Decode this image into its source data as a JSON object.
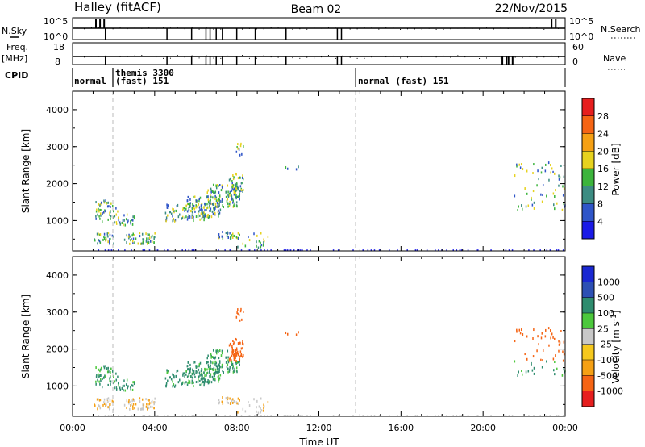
{
  "header": {
    "station": "Halley (fitACF)",
    "beam": "Beam 02",
    "date": "22/Nov/2015"
  },
  "chart_data": [
    {
      "type": "line",
      "name": "nsky-nsearch-strip",
      "left_label": "N.Sky",
      "right_label": "N.Search",
      "left_ticks": [
        "10^5",
        "10^0"
      ],
      "right_ticks": [
        "10^5",
        "10^0"
      ]
    },
    {
      "type": "line",
      "name": "freq-nave-strip",
      "left_label": "Freq.",
      "left_unit": "[MHz]",
      "right_label": "Nave",
      "left_ticks": [
        "18",
        "8"
      ],
      "right_ticks": [
        "60",
        "0"
      ]
    },
    {
      "type": "table",
      "name": "cpid-strip",
      "label": "CPID",
      "segments": [
        {
          "start_h": 0.0,
          "end_h": 1.75,
          "text": "normal"
        },
        {
          "start_h": 1.75,
          "end_h": 14.0,
          "text": "(fast) 151",
          "top_text": "themis 3300"
        },
        {
          "start_h": 14.0,
          "end_h": 24.0,
          "text": "normal (fast) 151"
        }
      ]
    },
    {
      "type": "heatmap",
      "name": "power-panel",
      "ylabel": "Slant Range [km]",
      "xlabel": "",
      "xlim_h": [
        0,
        24
      ],
      "ylim": [
        180,
        4500
      ],
      "yticks": [
        1000,
        2000,
        3000,
        4000
      ],
      "colorbar": {
        "label": "Power [dB]",
        "ticks": [
          "4",
          "8",
          "12",
          "16",
          "20",
          "24",
          "28"
        ],
        "colors": [
          "#1a1ae6",
          "#2f55c8",
          "#3c8c82",
          "#3cb43c",
          "#e6d21e",
          "#f5a014",
          "#f56414",
          "#e61e1e"
        ]
      },
      "scatter_blobs": [
        {
          "t0": 1.0,
          "t1": 2.2,
          "r0": 1000,
          "r1": 1600,
          "dens": 0.5
        },
        {
          "t0": 1.0,
          "t1": 2.0,
          "r0": 400,
          "r1": 700,
          "dens": 0.8
        },
        {
          "t0": 2.0,
          "t1": 3.0,
          "r0": 900,
          "r1": 1200,
          "dens": 0.7
        },
        {
          "t0": 2.5,
          "t1": 4.0,
          "r0": 400,
          "r1": 700,
          "dens": 0.9
        },
        {
          "t0": 4.5,
          "t1": 6.5,
          "r0": 1000,
          "r1": 1500,
          "dens": 0.6
        },
        {
          "t0": 5.5,
          "t1": 7.2,
          "r0": 1100,
          "r1": 1700,
          "dens": 0.8
        },
        {
          "t0": 6.5,
          "t1": 8.2,
          "r0": 1400,
          "r1": 2000,
          "dens": 0.8
        },
        {
          "t0": 7.6,
          "t1": 8.3,
          "r0": 1700,
          "r1": 2300,
          "dens": 0.9
        },
        {
          "t0": 7.0,
          "t1": 8.1,
          "r0": 550,
          "r1": 750,
          "dens": 0.9
        },
        {
          "t0": 8.0,
          "t1": 9.5,
          "r0": 300,
          "r1": 700,
          "dens": 0.3
        },
        {
          "t0": 7.9,
          "t1": 8.3,
          "r0": 2800,
          "r1": 3200,
          "dens": 0.5
        },
        {
          "t0": 10.3,
          "t1": 11.0,
          "r0": 2400,
          "r1": 2500,
          "dens": 0.6
        },
        {
          "t0": 21.5,
          "t1": 24.0,
          "r0": 1300,
          "r1": 2600,
          "dens": 0.15
        }
      ]
    },
    {
      "type": "heatmap",
      "name": "velocity-panel",
      "ylabel": "Slant Range [km]",
      "xlabel": "Time UT",
      "xlim_h": [
        0,
        24
      ],
      "ylim": [
        180,
        4500
      ],
      "yticks": [
        1000,
        2000,
        3000,
        4000
      ],
      "xticks": [
        "00:00",
        "04:00",
        "08:00",
        "12:00",
        "16:00",
        "20:00",
        "00:00"
      ],
      "colorbar": {
        "label": "Velocity [m s^-1]",
        "ticks": [
          "1000",
          "500",
          "100",
          "25",
          "-25",
          "-100",
          "-500",
          "-1000"
        ],
        "colors": [
          "#1a28d2",
          "#2d50b4",
          "#2e8c6e",
          "#4cc83c",
          "#c8c8c8",
          "#f5c81e",
          "#f5a014",
          "#f56414",
          "#e61e1e"
        ]
      }
    }
  ]
}
